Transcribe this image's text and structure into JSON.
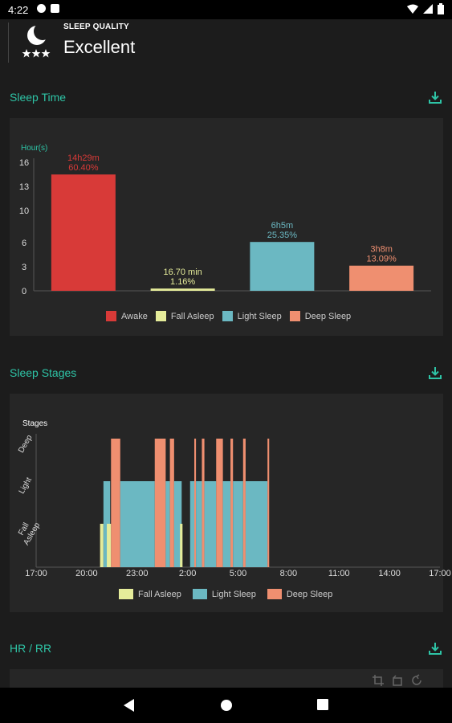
{
  "status_bar": {
    "time": "4:22"
  },
  "sleep_quality": {
    "label": "SLEEP QUALITY",
    "value": "Excellent"
  },
  "sections": {
    "sleep_time": "Sleep Time",
    "sleep_stages": "Sleep Stages",
    "hr_rr": "HR / RR"
  },
  "colors": {
    "accent": "#2ec4a6",
    "awake": "#d83a38",
    "fall_asleep": "#e5ec9a",
    "light_sleep": "#6bb8c2",
    "deep_sleep": "#ef8f70"
  },
  "chart_data": [
    {
      "type": "bar",
      "ylabel": "Hour(s)",
      "ylim": [
        0,
        16
      ],
      "yticks": [
        "0",
        "3",
        "6",
        "10",
        "13",
        "16"
      ],
      "categories": [
        "Awake",
        "Fall Asleep",
        "Light Sleep",
        "Deep Sleep"
      ],
      "values": [
        14.48,
        0.28,
        6.08,
        3.13
      ],
      "labels": [
        [
          "14h29m",
          "60.40%"
        ],
        [
          "16.70 min",
          "1.16%"
        ],
        [
          "6h5m",
          "25.35%"
        ],
        [
          "3h8m",
          "13.09%"
        ]
      ],
      "legend": [
        "Awake",
        "Fall Asleep",
        "Light Sleep",
        "Deep Sleep"
      ]
    },
    {
      "type": "area",
      "ylabel": "Stages",
      "stage_labels": [
        "Deep",
        "Light",
        "Fall Asleep"
      ],
      "xticks": [
        "17:00",
        "20:00",
        "23:00",
        "2:00",
        "5:00",
        "8:00",
        "11:00",
        "14:00",
        "17:00"
      ],
      "legend": [
        "Fall Asleep",
        "Light Sleep",
        "Deep Sleep"
      ],
      "segments": [
        {
          "stage": "fall",
          "start": 20.8,
          "end": 21.0
        },
        {
          "stage": "light",
          "start": 21.0,
          "end": 21.4
        },
        {
          "stage": "fall",
          "start": 21.2,
          "end": 21.45
        },
        {
          "stage": "deep",
          "start": 21.45,
          "end": 22.0
        },
        {
          "stage": "light",
          "start": 22.0,
          "end": 24.05
        },
        {
          "stage": "deep",
          "start": 24.05,
          "end": 24.7
        },
        {
          "stage": "light",
          "start": 24.7,
          "end": 24.95
        },
        {
          "stage": "deep",
          "start": 24.95,
          "end": 25.2
        },
        {
          "stage": "light",
          "start": 25.2,
          "end": 25.65
        },
        {
          "stage": "fall",
          "start": 25.55,
          "end": 25.7
        },
        {
          "stage": "light",
          "start": 26.15,
          "end": 26.4
        },
        {
          "stage": "deep",
          "start": 26.4,
          "end": 26.5
        },
        {
          "stage": "light",
          "start": 26.5,
          "end": 26.85
        },
        {
          "stage": "deep",
          "start": 26.85,
          "end": 27.0
        },
        {
          "stage": "light",
          "start": 27.0,
          "end": 27.7
        },
        {
          "stage": "deep",
          "start": 27.7,
          "end": 28.1
        },
        {
          "stage": "light",
          "start": 28.1,
          "end": 28.55
        },
        {
          "stage": "deep",
          "start": 28.55,
          "end": 28.7
        },
        {
          "stage": "light",
          "start": 28.7,
          "end": 29.3
        },
        {
          "stage": "deep",
          "start": 29.3,
          "end": 29.45
        },
        {
          "stage": "light",
          "start": 29.45,
          "end": 30.75
        },
        {
          "stage": "deep",
          "start": 30.75,
          "end": 30.85
        }
      ]
    }
  ]
}
